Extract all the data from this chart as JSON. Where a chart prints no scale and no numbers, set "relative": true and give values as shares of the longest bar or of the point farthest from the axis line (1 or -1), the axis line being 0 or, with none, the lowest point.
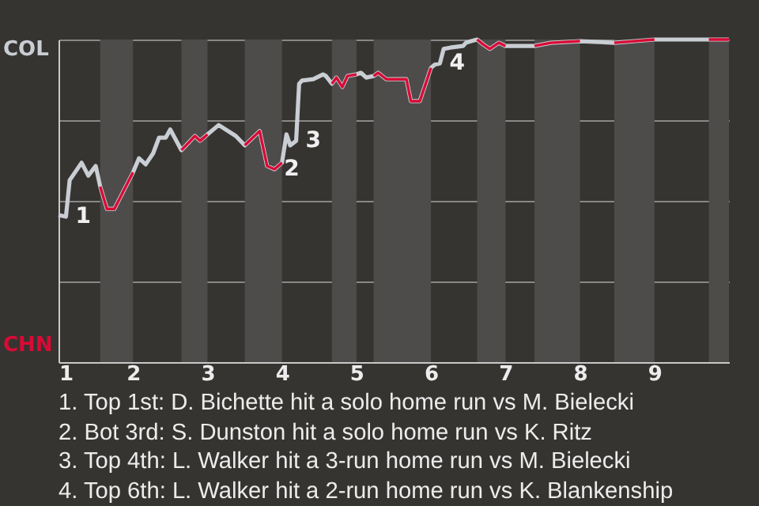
{
  "chart_data": {
    "type": "line",
    "relative": true,
    "xlim": [
      1,
      10
    ],
    "xticks": [
      1,
      2,
      3,
      4,
      5,
      6,
      7,
      8,
      9
    ],
    "grid": "y",
    "line_style": "solid",
    "series": [
      {
        "color": "#c9ced4",
        "x": [
          1.0,
          1.1,
          1.15,
          1.31,
          1.4,
          1.5,
          1.56,
          1.65,
          1.75,
          2.0,
          2.08,
          2.17,
          2.27,
          2.35,
          2.44,
          2.5,
          2.65,
          2.75,
          2.83,
          2.9,
          3.0,
          3.15,
          3.38,
          3.5,
          3.7,
          3.8,
          3.9,
          4.0,
          4.06,
          4.11,
          4.19,
          4.23,
          4.27,
          4.42,
          4.55,
          4.59,
          4.67,
          4.73,
          4.81,
          4.88,
          5.0,
          5.06,
          5.13,
          5.23,
          5.29,
          5.4,
          5.67,
          5.73,
          5.85,
          6.0,
          6.05,
          6.12,
          6.17,
          6.26,
          6.43,
          6.47,
          6.54,
          6.62,
          6.7,
          6.79,
          6.91,
          7.0,
          7.39,
          7.61,
          8.0,
          8.46,
          9.0,
          9.73,
          10.0
        ],
        "values": [
          0.456,
          0.451,
          0.564,
          0.618,
          0.578,
          0.608,
          0.544,
          0.475,
          0.475,
          0.588,
          0.632,
          0.613,
          0.647,
          0.696,
          0.696,
          0.721,
          0.657,
          0.681,
          0.701,
          0.686,
          0.706,
          0.735,
          0.701,
          0.672,
          0.716,
          0.608,
          0.598,
          0.618,
          0.706,
          0.672,
          0.686,
          0.863,
          0.873,
          0.877,
          0.892,
          0.887,
          0.863,
          0.882,
          0.853,
          0.887,
          0.892,
          0.897,
          0.882,
          0.887,
          0.897,
          0.877,
          0.877,
          0.809,
          0.809,
          0.912,
          0.922,
          0.926,
          0.971,
          0.975,
          0.98,
          0.99,
          0.995,
          1,
          0.985,
          0.971,
          0.99,
          0.98,
          0.98,
          0.99,
          0.995,
          0.99,
          1,
          1,
          1
        ]
      },
      {
        "color": "#d90a35",
        "x": [
          1.56,
          1.65,
          1.75,
          2.0,
          2.25,
          2.65,
          2.75,
          2.83,
          2.9,
          3.0,
          3.23,
          3.5,
          3.7,
          3.8,
          3.9,
          4.0,
          4.22,
          4.67,
          4.73,
          4.81,
          4.88,
          5.0,
          5.1,
          5.23,
          5.29,
          5.4,
          5.67,
          5.73,
          5.85,
          6.0,
          6.29,
          6.62,
          6.7,
          6.79,
          6.91,
          7.0,
          7.21,
          7.39,
          7.61,
          8.0,
          8.25,
          8.46,
          9.0,
          9.29,
          9.73,
          10.0
        ],
        "values": [
          0.544,
          0.475,
          0.475,
          0.588,
          null,
          0.657,
          0.681,
          0.701,
          0.686,
          0.706,
          null,
          0.672,
          0.716,
          0.608,
          0.598,
          0.618,
          null,
          0.863,
          0.882,
          0.853,
          0.887,
          0.892,
          null,
          0.887,
          0.897,
          0.877,
          0.877,
          0.809,
          0.809,
          0.912,
          null,
          1,
          0.985,
          0.971,
          0.99,
          0.98,
          null,
          0.98,
          0.99,
          0.995,
          null,
          0.99,
          1,
          null,
          1,
          1
        ]
      }
    ],
    "bands": [
      {
        "axis": "x",
        "from": 1.56,
        "to": 2.0,
        "color": "#4e4c4a"
      },
      {
        "axis": "x",
        "from": 2.65,
        "to": 3.0,
        "color": "#4e4c4a"
      },
      {
        "axis": "x",
        "from": 3.5,
        "to": 4.0,
        "color": "#4e4c4a"
      },
      {
        "axis": "x",
        "from": 4.67,
        "to": 5.0,
        "color": "#4e4c4a"
      },
      {
        "axis": "x",
        "from": 5.23,
        "to": 6.0,
        "color": "#4e4c4a"
      },
      {
        "axis": "x",
        "from": 6.62,
        "to": 7.0,
        "color": "#4e4c4a"
      },
      {
        "axis": "x",
        "from": 7.39,
        "to": 8.0,
        "color": "#4e4c4a"
      },
      {
        "axis": "x",
        "from": 8.46,
        "to": 9.0,
        "color": "#4e4c4a"
      },
      {
        "axis": "x",
        "from": 9.73,
        "to": 10.0,
        "color": "#4e4c4a"
      }
    ],
    "annotations": [
      {
        "text": "1",
        "x": 1.1,
        "y": 0.451
      },
      {
        "text": "2",
        "x": 3.9,
        "y": 0.598
      },
      {
        "text": "3",
        "x": 4.19,
        "y": 0.686
      },
      {
        "text": "4",
        "x": 6.12,
        "y": 0.926
      },
      "COL",
      "CHN",
      "1. Top 1st: D. Bichette hit a solo home run vs M. Bielecki",
      "2. Bot 3rd: S. Dunston hit a solo home run vs K. Ritz",
      "3. Top 4th: L. Walker hit a 3-run home run vs M. Bielecki",
      "4. Top 6th: L. Walker hit a 2-run home run vs K. Blankenship"
    ]
  }
}
